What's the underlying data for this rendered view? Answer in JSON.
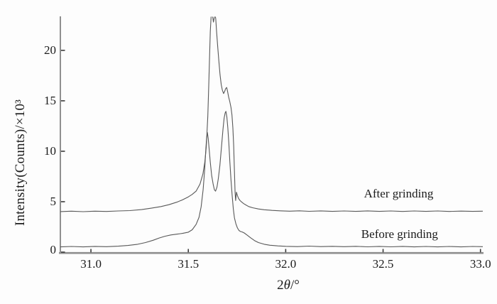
{
  "chart_data": {
    "type": "line",
    "title": "",
    "xlabel": "2θ/°",
    "xlabel_parts": [
      "2",
      "θ",
      "/°"
    ],
    "ylabel": "Intensity(Counts)/×10³",
    "xlim": [
      30.843,
      33.012
    ],
    "ylim": [
      0,
      23.3
    ],
    "x_ticks": [
      31.0,
      31.5,
      32.0,
      32.5,
      33.0
    ],
    "x_tick_labels": [
      "31.0",
      "31.5",
      "32.0",
      "32.5",
      "33.0"
    ],
    "y_ticks": [
      0,
      5,
      10,
      15,
      20
    ],
    "y_tick_labels": [
      "0",
      "5",
      "10",
      "15",
      "20"
    ],
    "grid": false,
    "legend_position": "inline-annotations",
    "line_color": "#585858",
    "axis_color": "#8f8f8f",
    "tick_color": "#3a3a3a",
    "annotations": [
      {
        "text": "After grinding",
        "theta": 32.58,
        "intensity": 5.77
      },
      {
        "text": "Before grinding",
        "theta": 32.585,
        "intensity": 1.76
      }
    ],
    "series": [
      {
        "name": "After grinding",
        "baseline_x1000": 4.05,
        "visible_peaks": [
          {
            "theta": 31.62,
            "intensity_x1000": 23.3,
            "clipped_at_axis_top": true
          },
          {
            "theta": 31.7,
            "intensity_x1000": 16.3
          }
        ],
        "points": [
          [
            30.843,
            4.02
          ],
          [
            30.9,
            4.06
          ],
          [
            30.96,
            4.01
          ],
          [
            31.02,
            4.06
          ],
          [
            31.08,
            4.03
          ],
          [
            31.14,
            4.08
          ],
          [
            31.2,
            4.12
          ],
          [
            31.26,
            4.22
          ],
          [
            31.31,
            4.36
          ],
          [
            31.36,
            4.52
          ],
          [
            31.4,
            4.7
          ],
          [
            31.44,
            4.95
          ],
          [
            31.47,
            5.18
          ],
          [
            31.5,
            5.48
          ],
          [
            31.52,
            5.72
          ],
          [
            31.54,
            6.05
          ],
          [
            31.56,
            6.75
          ],
          [
            31.575,
            7.75
          ],
          [
            31.585,
            8.95
          ],
          [
            31.592,
            10.4
          ],
          [
            31.6,
            13.5
          ],
          [
            31.605,
            16.5
          ],
          [
            31.609,
            19.2
          ],
          [
            31.613,
            21.9
          ],
          [
            31.617,
            23.3
          ],
          [
            31.621,
            23.6
          ],
          [
            31.626,
            23.2
          ],
          [
            31.629,
            22.8
          ],
          [
            31.633,
            23.2
          ],
          [
            31.637,
            23.6
          ],
          [
            31.641,
            23.1
          ],
          [
            31.645,
            21.9
          ],
          [
            31.651,
            20.3
          ],
          [
            31.657,
            18.9
          ],
          [
            31.663,
            17.6
          ],
          [
            31.669,
            16.6
          ],
          [
            31.675,
            16.05
          ],
          [
            31.681,
            15.72
          ],
          [
            31.687,
            15.95
          ],
          [
            31.692,
            16.22
          ],
          [
            31.697,
            16.32
          ],
          [
            31.702,
            15.9
          ],
          [
            31.707,
            15.38
          ],
          [
            31.713,
            14.9
          ],
          [
            31.719,
            14.35
          ],
          [
            31.724,
            13.6
          ],
          [
            31.729,
            12.3
          ],
          [
            31.733,
            10.6
          ],
          [
            31.737,
            8.0
          ],
          [
            31.74,
            5.9
          ],
          [
            31.743,
            5.12
          ],
          [
            31.747,
            5.95
          ],
          [
            31.752,
            5.6
          ],
          [
            31.758,
            5.32
          ],
          [
            31.766,
            5.1
          ],
          [
            31.775,
            4.95
          ],
          [
            31.785,
            4.8
          ],
          [
            31.795,
            4.68
          ],
          [
            31.81,
            4.52
          ],
          [
            31.83,
            4.4
          ],
          [
            31.86,
            4.28
          ],
          [
            31.89,
            4.2
          ],
          [
            31.93,
            4.14
          ],
          [
            31.97,
            4.1
          ],
          [
            32.02,
            4.06
          ],
          [
            32.07,
            4.1
          ],
          [
            32.12,
            4.05
          ],
          [
            32.18,
            4.09
          ],
          [
            32.24,
            4.04
          ],
          [
            32.3,
            4.08
          ],
          [
            32.36,
            4.04
          ],
          [
            32.42,
            4.09
          ],
          [
            32.48,
            4.04
          ],
          [
            32.54,
            4.08
          ],
          [
            32.6,
            4.03
          ],
          [
            32.66,
            4.08
          ],
          [
            32.72,
            4.04
          ],
          [
            32.78,
            4.08
          ],
          [
            32.84,
            4.03
          ],
          [
            32.9,
            4.07
          ],
          [
            32.96,
            4.04
          ],
          [
            33.012,
            4.06
          ]
        ]
      },
      {
        "name": "Before grinding",
        "baseline_x1000": 0.55,
        "visible_peaks": [
          {
            "theta": 31.6,
            "intensity_x1000": 11.9
          },
          {
            "theta": 31.69,
            "intensity_x1000": 14.0
          }
        ],
        "points": [
          [
            30.843,
            0.52
          ],
          [
            30.9,
            0.56
          ],
          [
            30.96,
            0.52
          ],
          [
            31.02,
            0.57
          ],
          [
            31.08,
            0.54
          ],
          [
            31.14,
            0.59
          ],
          [
            31.19,
            0.66
          ],
          [
            31.24,
            0.78
          ],
          [
            31.28,
            0.95
          ],
          [
            31.32,
            1.18
          ],
          [
            31.35,
            1.4
          ],
          [
            31.38,
            1.58
          ],
          [
            31.41,
            1.7
          ],
          [
            31.44,
            1.78
          ],
          [
            31.47,
            1.86
          ],
          [
            31.5,
            1.98
          ],
          [
            31.52,
            2.22
          ],
          [
            31.54,
            2.75
          ],
          [
            31.555,
            3.45
          ],
          [
            31.566,
            4.5
          ],
          [
            31.576,
            6.2
          ],
          [
            31.584,
            8.2
          ],
          [
            31.59,
            10.2
          ],
          [
            31.594,
            11.3
          ],
          [
            31.598,
            11.85
          ],
          [
            31.602,
            11.3
          ],
          [
            31.607,
            10.2
          ],
          [
            31.613,
            8.9
          ],
          [
            31.62,
            7.6
          ],
          [
            31.628,
            6.7
          ],
          [
            31.634,
            6.18
          ],
          [
            31.64,
            6.05
          ],
          [
            31.647,
            6.45
          ],
          [
            31.654,
            7.3
          ],
          [
            31.662,
            8.6
          ],
          [
            31.67,
            10.4
          ],
          [
            31.678,
            12.2
          ],
          [
            31.684,
            13.3
          ],
          [
            31.689,
            13.8
          ],
          [
            31.693,
            13.95
          ],
          [
            31.698,
            13.4
          ],
          [
            31.703,
            12.3
          ],
          [
            31.708,
            10.8
          ],
          [
            31.713,
            9.0
          ],
          [
            31.719,
            7.2
          ],
          [
            31.725,
            5.6
          ],
          [
            31.731,
            4.3
          ],
          [
            31.737,
            3.4
          ],
          [
            31.744,
            2.82
          ],
          [
            31.752,
            2.4
          ],
          [
            31.76,
            2.15
          ],
          [
            31.768,
            2.05
          ],
          [
            31.777,
            2.0
          ],
          [
            31.787,
            1.9
          ],
          [
            31.8,
            1.72
          ],
          [
            31.82,
            1.42
          ],
          [
            31.84,
            1.15
          ],
          [
            31.86,
            0.95
          ],
          [
            31.89,
            0.78
          ],
          [
            31.92,
            0.68
          ],
          [
            31.96,
            0.62
          ],
          [
            32.0,
            0.58
          ],
          [
            32.06,
            0.55
          ],
          [
            32.12,
            0.6
          ],
          [
            32.18,
            0.55
          ],
          [
            32.24,
            0.58
          ],
          [
            32.3,
            0.54
          ],
          [
            32.36,
            0.58
          ],
          [
            32.42,
            0.53
          ],
          [
            32.48,
            0.57
          ],
          [
            32.54,
            0.53
          ],
          [
            32.6,
            0.57
          ],
          [
            32.66,
            0.52
          ],
          [
            32.72,
            0.56
          ],
          [
            32.78,
            0.52
          ],
          [
            32.84,
            0.56
          ],
          [
            32.9,
            0.52
          ],
          [
            32.96,
            0.56
          ],
          [
            33.012,
            0.54
          ]
        ]
      }
    ]
  }
}
